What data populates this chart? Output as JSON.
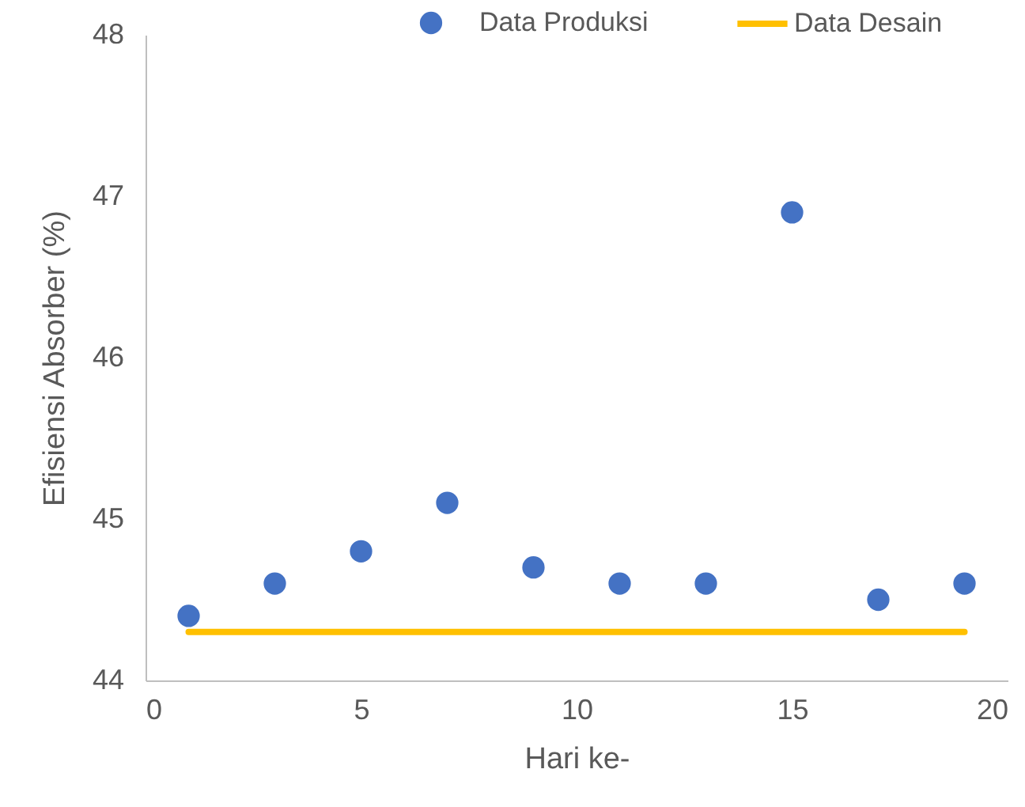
{
  "chart_data": {
    "type": "scatter",
    "xlabel": "Hari ke-",
    "ylabel": "Efisiensi Absorber (%)",
    "xlim": [
      0,
      20
    ],
    "xticks": [
      0,
      5,
      10,
      15,
      20
    ],
    "ylim": [
      44,
      48
    ],
    "yticks": [
      44,
      45,
      46,
      47,
      48
    ],
    "grid": false,
    "legend": "top right",
    "series": [
      {
        "name": "Data Produksi",
        "marker": "circle",
        "color": "#4472c4",
        "x": [
          1,
          3,
          5,
          7,
          9,
          11,
          13,
          15,
          17,
          19
        ],
        "values": [
          44.4,
          44.6,
          44.8,
          45.1,
          44.7,
          44.6,
          44.6,
          46.9,
          44.5,
          44.6
        ]
      },
      {
        "name": "Data Desain",
        "type": "line",
        "marker": "none",
        "color": "#ffc000",
        "x": [
          1,
          19
        ],
        "values": [
          44.3,
          44.3
        ]
      }
    ]
  }
}
